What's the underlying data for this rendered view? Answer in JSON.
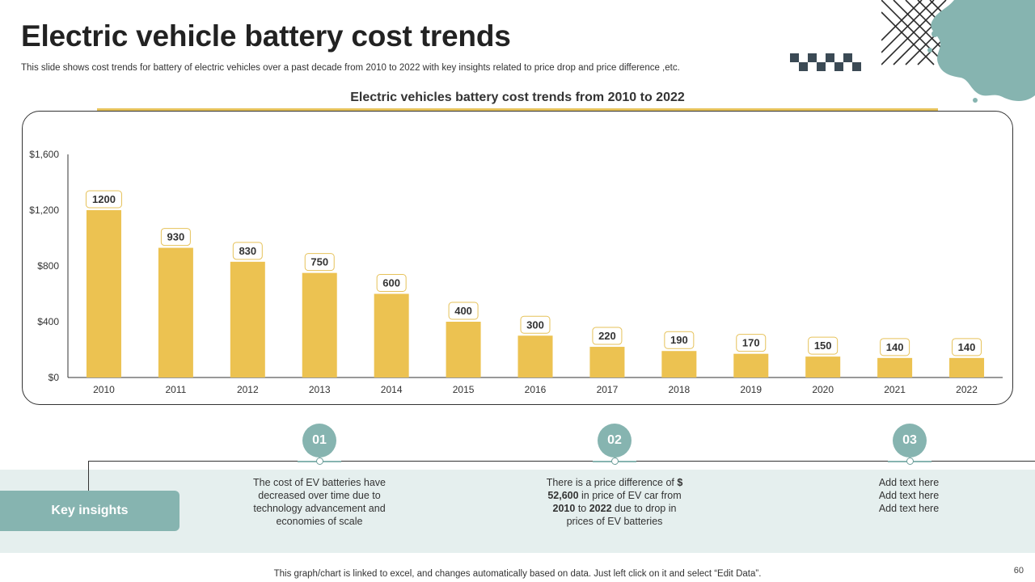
{
  "title": "Electric vehicle battery cost trends",
  "subtitle": "This slide shows cost trends for battery of  electric vehicles over a past decade from 2010 to 2022 with key insights related to price drop and price difference ,etc.",
  "chart_data": {
    "type": "bar",
    "title": "Electric vehicles battery cost trends from 2010 to 2022",
    "categories": [
      "2010",
      "2011",
      "2012",
      "2013",
      "2014",
      "2015",
      "2016",
      "2017",
      "2018",
      "2019",
      "2020",
      "2021",
      "2022"
    ],
    "values": [
      1200,
      930,
      830,
      750,
      600,
      400,
      300,
      220,
      190,
      170,
      150,
      140,
      140
    ],
    "ylim": [
      0,
      1600
    ],
    "yticks": [
      0,
      400,
      800,
      1200,
      1600
    ],
    "ytick_labels": [
      "$0",
      "$400",
      "$800",
      "$1,200",
      "$1,600"
    ],
    "xlabel": "",
    "ylabel": "",
    "grid": false,
    "bar_color": "#ecc251"
  },
  "insights": {
    "label": "Key insights",
    "items": [
      {
        "number": "01",
        "lines": [
          "The cost of EV batteries have",
          "decreased over time due to",
          "technology advancement and",
          "economies of scale"
        ]
      },
      {
        "number": "02",
        "line1_text": "There is a price difference of ",
        "line1_bold": "$",
        "line2_bold": "52,600",
        "line2_text": " in price of EV car from",
        "line3_bold_a": "2010",
        "line3_text_a": " to ",
        "line3_bold_b": "2022",
        "line3_text_b": " due to drop in",
        "line4_text": "prices of EV batteries"
      },
      {
        "number": "03",
        "lines": [
          "Add text here",
          "Add text here",
          "Add text here"
        ]
      }
    ]
  },
  "footer_note": "This graph/chart is linked to excel, and changes automatically based on data. Just left click on it and select “Edit Data”.",
  "page_number": "60",
  "colors": {
    "accent_teal": "#86b4b0",
    "accent_gold": "#e6c25a",
    "dark_slate": "#3b4a55",
    "band_bg": "#e5efee"
  }
}
